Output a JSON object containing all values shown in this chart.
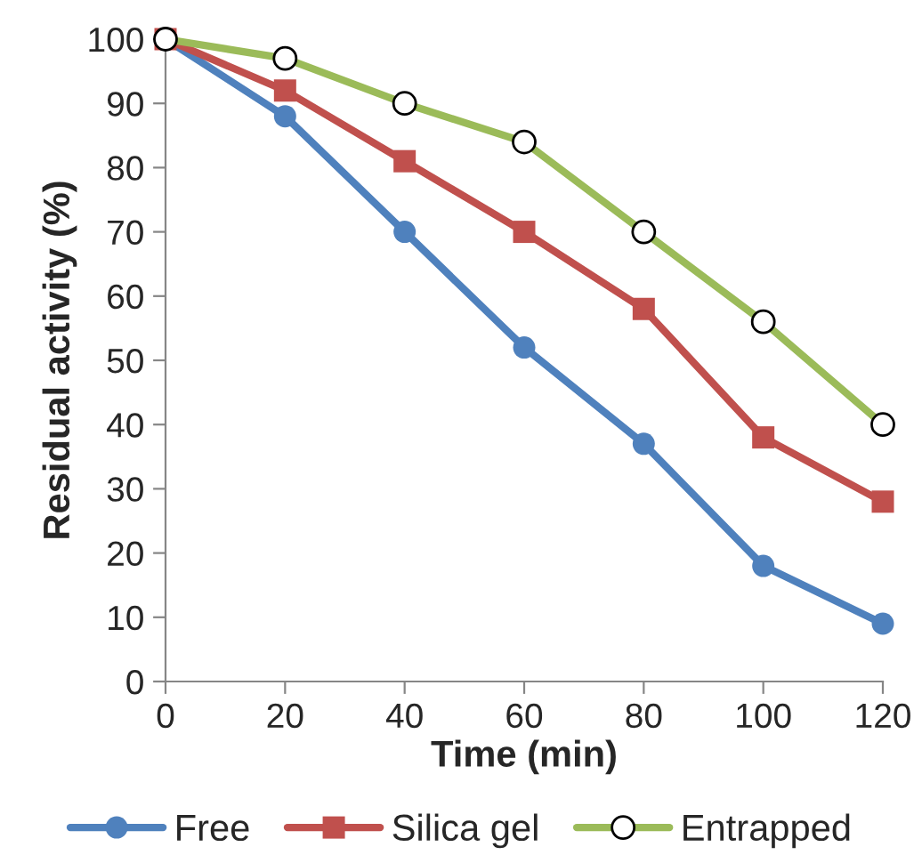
{
  "chart_data": {
    "type": "line",
    "xlabel": "Time (min)",
    "ylabel": "Residual activity (%)",
    "x": [
      0,
      20,
      40,
      60,
      80,
      100,
      120
    ],
    "series": [
      {
        "name": "Free",
        "color": "#4f81bd",
        "marker": "circle",
        "values": [
          100,
          88,
          70,
          52,
          37,
          18,
          9
        ]
      },
      {
        "name": "Silica gel",
        "color": "#c0504d",
        "marker": "square",
        "values": [
          100,
          92,
          81,
          70,
          58,
          38,
          28
        ]
      },
      {
        "name": "Entrapped",
        "color": "#9bbb59",
        "marker": "circle",
        "values": [
          100,
          97,
          90,
          84,
          70,
          56,
          40
        ]
      }
    ],
    "xlim": [
      0,
      120
    ],
    "xticks": [
      0,
      20,
      40,
      60,
      80,
      100,
      120
    ],
    "ylim": [
      0,
      100
    ],
    "yticks": [
      0,
      10,
      20,
      30,
      40,
      50,
      60,
      70,
      80,
      90,
      100
    ],
    "grid": false,
    "legend": "bottom",
    "line_style": "solid"
  }
}
